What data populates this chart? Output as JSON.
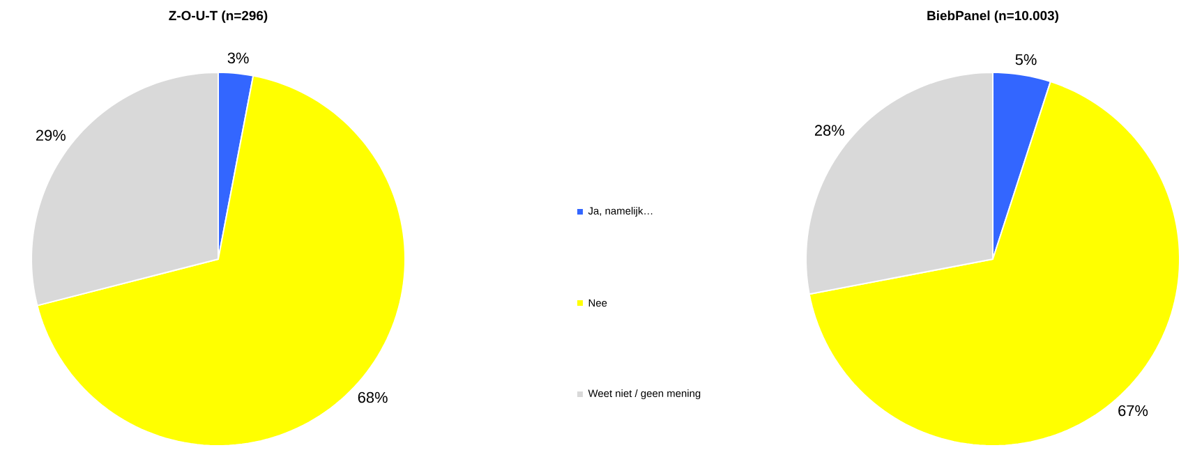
{
  "chart_data": [
    {
      "type": "pie",
      "title": "Z-O-U-T (n=296)",
      "categories": [
        "Ja, namelijk…",
        "Nee",
        "Weet niet / geen mening"
      ],
      "values": [
        3,
        68,
        29
      ],
      "value_labels": [
        "3%",
        "68%",
        "29%"
      ],
      "colors": [
        "#3366ff",
        "#ffff00",
        "#d9d9d9"
      ],
      "legend": "right"
    },
    {
      "type": "pie",
      "title": "BiebPanel (n=10.003)",
      "categories": [
        null,
        null,
        null
      ],
      "values": [
        5,
        67,
        28
      ],
      "value_labels": [
        "5%",
        "67%",
        "28%"
      ],
      "colors": [
        "#3366ff",
        "#ffff00",
        "#d9d9d9"
      ]
    }
  ]
}
